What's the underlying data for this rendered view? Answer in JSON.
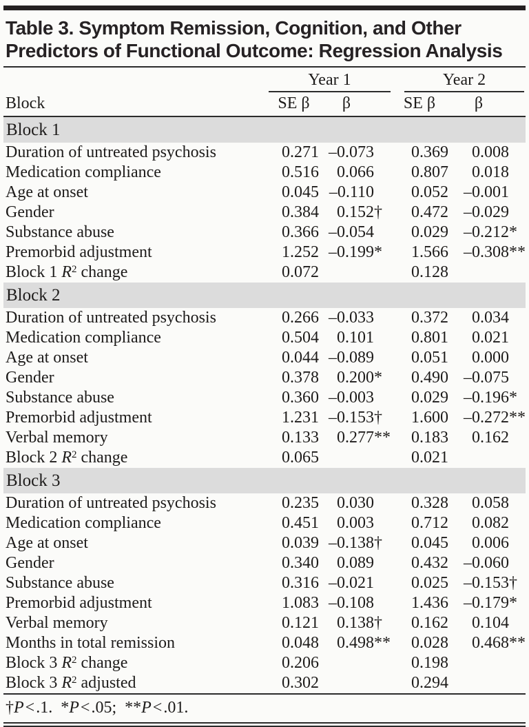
{
  "title": {
    "line1": "Table 3. Symptom Remission, Cognition, and Other",
    "line2": "Predictors of Functional Outcome: Regression Analysis"
  },
  "header": {
    "row_label": "Block",
    "groups": [
      "Year 1",
      "Year 2"
    ],
    "columns": [
      "SE β",
      "β",
      "SE β",
      "β"
    ]
  },
  "blocks": [
    {
      "name": "Block 1",
      "rows": [
        {
          "label": "Duration of untreated psychosis",
          "cells": [
            "0.271",
            "–0.073",
            "0.369",
            "0.008"
          ]
        },
        {
          "label": "Medication compliance",
          "cells": [
            "0.516",
            "0.066",
            "0.807",
            "0.018"
          ]
        },
        {
          "label": "Age at onset",
          "cells": [
            "0.045",
            "–0.110",
            "0.052",
            "–0.001"
          ]
        },
        {
          "label": "Gender",
          "cells": [
            "0.384",
            "0.152†",
            "0.472",
            "–0.029"
          ]
        },
        {
          "label": "Substance abuse",
          "cells": [
            "0.366",
            "–0.054",
            "0.029",
            "–0.212*"
          ]
        },
        {
          "label": "Premorbid adjustment",
          "cells": [
            "1.252",
            "–0.199*",
            "1.566",
            "–0.308**"
          ]
        },
        {
          "label": "Block 1 R^2 change",
          "cells": [
            "0.072",
            "",
            "0.128",
            ""
          ]
        }
      ]
    },
    {
      "name": "Block 2",
      "rows": [
        {
          "label": "Duration of untreated psychosis",
          "cells": [
            "0.266",
            "–0.033",
            "0.372",
            "0.034"
          ]
        },
        {
          "label": "Medication compliance",
          "cells": [
            "0.504",
            "0.101",
            "0.801",
            "0.021"
          ]
        },
        {
          "label": "Age at onset",
          "cells": [
            "0.044",
            "–0.089",
            "0.051",
            "0.000"
          ]
        },
        {
          "label": "Gender",
          "cells": [
            "0.378",
            "0.200*",
            "0.490",
            "–0.075"
          ]
        },
        {
          "label": "Substance abuse",
          "cells": [
            "0.360",
            "–0.003",
            "0.029",
            "–0.196*"
          ]
        },
        {
          "label": "Premorbid adjustment",
          "cells": [
            "1.231",
            "–0.153†",
            "1.600",
            "–0.272**"
          ]
        },
        {
          "label": "Verbal memory",
          "cells": [
            "0.133",
            "0.277**",
            "0.183",
            "0.162"
          ]
        },
        {
          "label": "Block 2 R^2 change",
          "cells": [
            "0.065",
            "",
            "0.021",
            ""
          ]
        }
      ]
    },
    {
      "name": "Block 3",
      "rows": [
        {
          "label": "Duration of untreated psychosis",
          "cells": [
            "0.235",
            "0.030",
            "0.328",
            "0.058"
          ]
        },
        {
          "label": "Medication compliance",
          "cells": [
            "0.451",
            "0.003",
            "0.712",
            "0.082"
          ]
        },
        {
          "label": "Age at onset",
          "cells": [
            "0.039",
            "–0.138†",
            "0.045",
            "0.006"
          ]
        },
        {
          "label": "Gender",
          "cells": [
            "0.340",
            "0.089",
            "0.432",
            "–0.060"
          ]
        },
        {
          "label": "Substance abuse",
          "cells": [
            "0.316",
            "–0.021",
            "0.025",
            "–0.153†"
          ]
        },
        {
          "label": "Premorbid adjustment",
          "cells": [
            "1.083",
            "–0.108",
            "1.436",
            "–0.179*"
          ]
        },
        {
          "label": "Verbal memory",
          "cells": [
            "0.121",
            "0.138†",
            "0.162",
            "0.104"
          ]
        },
        {
          "label": "Months in total remission",
          "cells": [
            "0.048",
            "0.498**",
            "0.028",
            "0.468**"
          ]
        },
        {
          "label": "Block 3 R^2 change",
          "cells": [
            "0.206",
            "",
            "0.198",
            ""
          ]
        },
        {
          "label": "Block 3 R^2 adjusted",
          "cells": [
            "0.302",
            "",
            "0.294",
            ""
          ]
        }
      ]
    }
  ],
  "footnote": "†P<.1.  *P<.05;  **P<.01.",
  "colors": {
    "band": "#dcdcdc",
    "rule": "#2b2b2b",
    "background": "#fbfbf9",
    "text": "#1d1b1a"
  }
}
